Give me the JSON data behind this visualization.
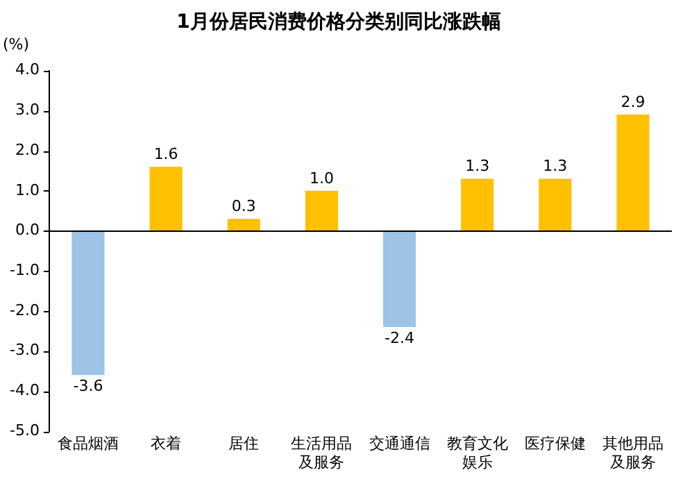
{
  "chart_data": {
    "type": "bar",
    "title": "1月份居民消费价格分类别同比涨跌幅",
    "ylabel": "(%)",
    "categories": [
      "食品烟酒",
      "衣着",
      "居住",
      "生活用品及服务",
      "交通通信",
      "教育文化娱乐",
      "医疗保健",
      "其他用品及服务"
    ],
    "values": [
      -3.6,
      1.6,
      0.3,
      1.0,
      -2.4,
      1.3,
      1.3,
      2.9
    ],
    "value_labels": [
      "-3.6",
      "1.6",
      "0.3",
      "1.0",
      "-2.4",
      "1.3",
      "1.3",
      "2.9"
    ],
    "colors": [
      "#9dc3e6",
      "#ffc000",
      "#ffc000",
      "#ffc000",
      "#9dc3e6",
      "#ffc000",
      "#ffc000",
      "#ffc000"
    ],
    "ylim": [
      -5,
      4
    ],
    "yticks": [
      {
        "value": -5,
        "label": "-5.0"
      },
      {
        "value": -4,
        "label": "-4.0"
      },
      {
        "value": -3,
        "label": "-3.0"
      },
      {
        "value": -2,
        "label": "-2.0"
      },
      {
        "value": -1,
        "label": "-1.0"
      },
      {
        "value": 0,
        "label": "0.0"
      },
      {
        "value": 1,
        "label": "1.0"
      },
      {
        "value": 2,
        "label": "2.0"
      },
      {
        "value": 3,
        "label": "3.0"
      },
      {
        "value": 4,
        "label": "4.0"
      }
    ],
    "legend": false
  }
}
